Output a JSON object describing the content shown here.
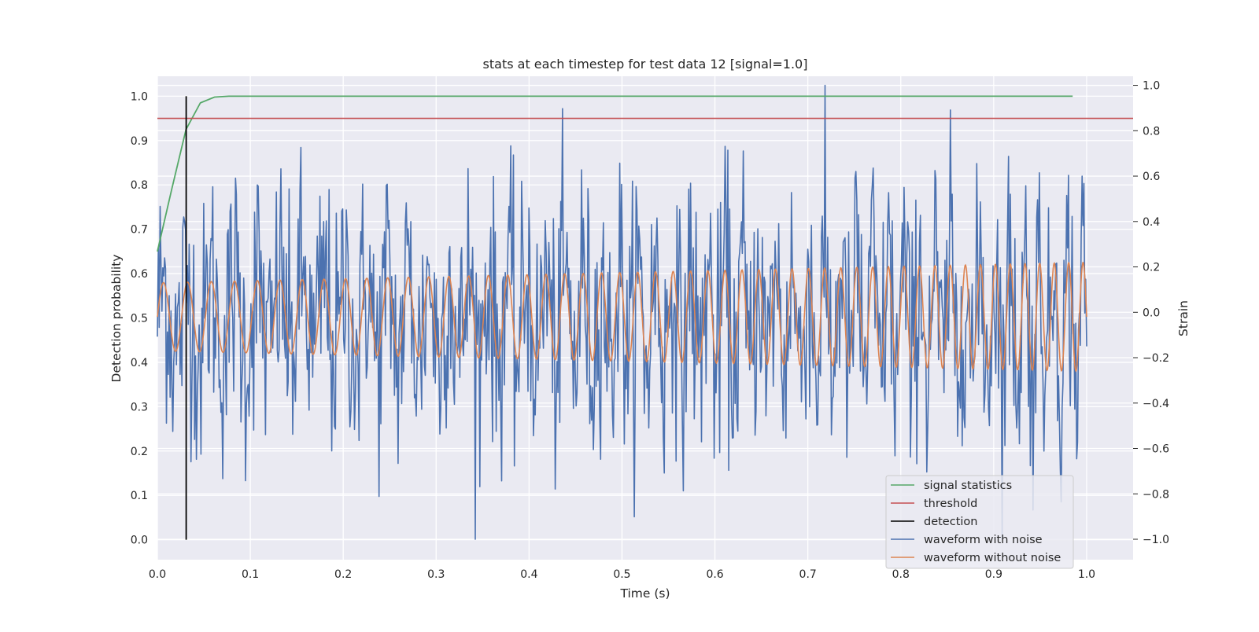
{
  "chart_data": {
    "type": "line",
    "title": "stats at each timestep for test data 12 [signal=1.0]",
    "xlabel": "Time (s)",
    "ylabel_left": "Detection probability",
    "ylabel_right": "Strain",
    "xlim": [
      0.0,
      1.05
    ],
    "ylim_left": [
      -0.045,
      1.045
    ],
    "ylim_right": [
      -1.09,
      1.04
    ],
    "xticks": [
      "0.0",
      "0.1",
      "0.2",
      "0.3",
      "0.4",
      "0.5",
      "0.6",
      "0.7",
      "0.8",
      "0.9",
      "1.0"
    ],
    "yticks_left": [
      "0.0",
      "0.1",
      "0.2",
      "0.3",
      "0.4",
      "0.5",
      "0.6",
      "0.7",
      "0.8",
      "0.9",
      "1.0"
    ],
    "yticks_right": [
      "−1.0",
      "−0.8",
      "−0.6",
      "−0.4",
      "−0.2",
      "0.0",
      "0.2",
      "0.4",
      "0.6",
      "0.8",
      "1.0"
    ],
    "grid": true,
    "legend_position": "bottom-right",
    "legend": [
      {
        "label": "signal statistics",
        "color": "#55a868"
      },
      {
        "label": "threshold",
        "color": "#c44e52"
      },
      {
        "label": "detection",
        "color": "#000000"
      },
      {
        "label": "waveform with noise",
        "color": "#4c72b0"
      },
      {
        "label": "waveform without noise",
        "color": "#dd8452"
      }
    ],
    "signal_statistics": {
      "axis": "left",
      "x": [
        0.0,
        0.0154,
        0.0308,
        0.0462,
        0.0615,
        0.0769,
        0.1,
        0.2,
        0.4,
        0.6,
        0.8,
        0.985
      ],
      "y": [
        0.65,
        0.79,
        0.925,
        0.985,
        0.998,
        1.0,
        1.0,
        1.0,
        1.0,
        1.0,
        1.0,
        1.0
      ]
    },
    "threshold": {
      "axis": "left",
      "value": 0.95,
      "x_range": [
        0.0,
        1.05
      ]
    },
    "detection": {
      "axis": "left",
      "x": 0.031,
      "y_range": [
        0.0,
        1.0
      ]
    },
    "waveform_without_noise": {
      "axis": "right",
      "x_range": [
        0.0,
        1.0
      ],
      "amplitude_start": 0.15,
      "amplitude_end": 0.24,
      "freq_start_hz": 38,
      "freq_end_hz": 65,
      "offset": -0.02
    },
    "waveform_with_noise": {
      "axis": "right",
      "x_range": [
        0.0,
        1.0
      ],
      "samples": 1024,
      "noise_std": 0.28,
      "y_min": -1.0,
      "y_max": 1.0
    }
  }
}
